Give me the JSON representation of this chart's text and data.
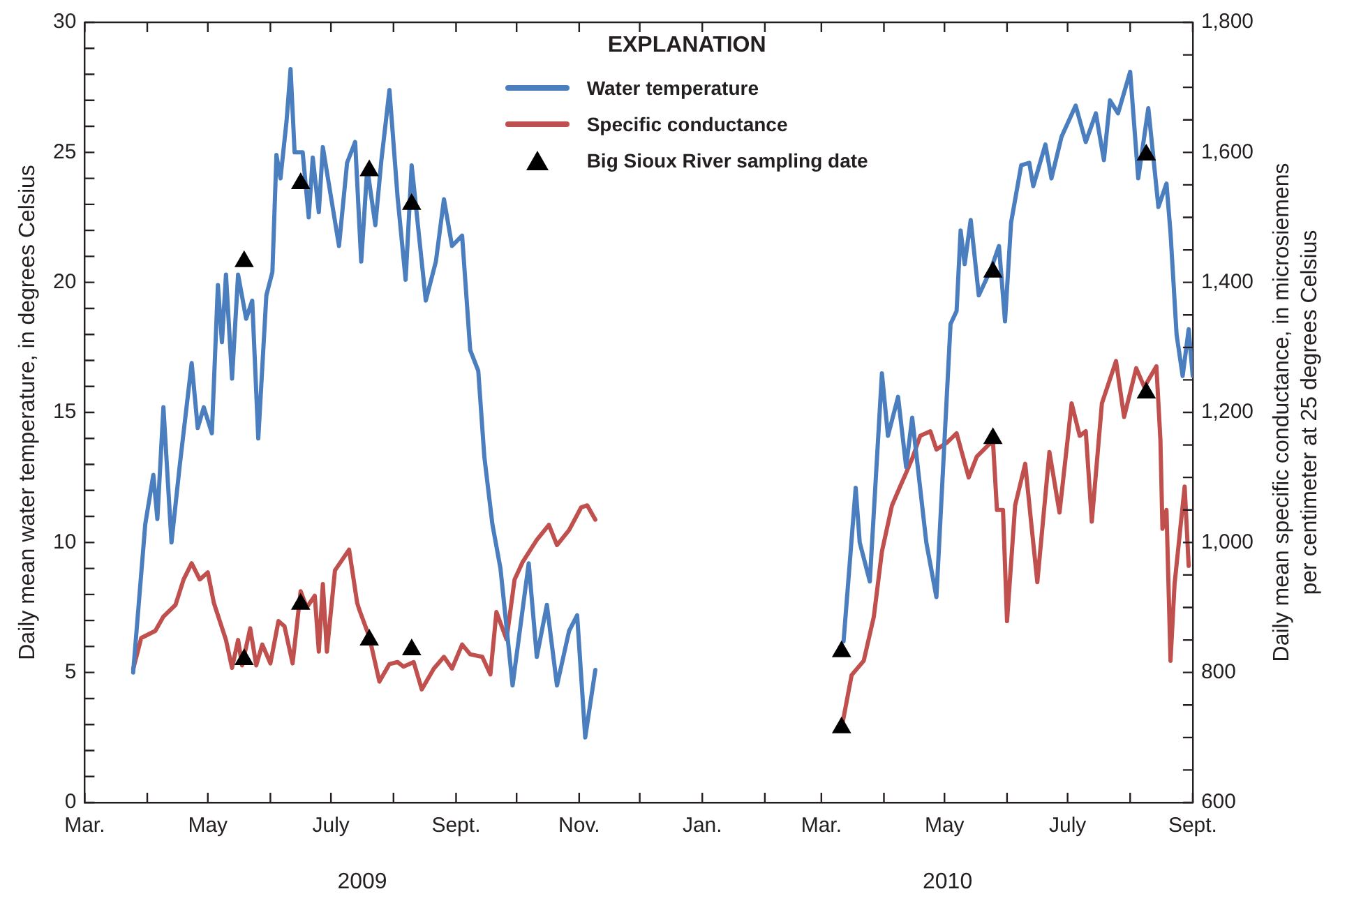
{
  "chart_data": {
    "type": "line",
    "ylabel": "Daily mean water temperature, in degrees Celsius",
    "y2label": "Daily mean specific conductance, in microsiemens\nper centimeter at 25 degrees Celsius",
    "legend_title": "EXPLANATION",
    "legend": "top",
    "grid": false,
    "annotations": [
      "2009",
      "2010"
    ],
    "xlim": [
      "2009-03-01",
      "2010-09-01"
    ],
    "xticks": [
      {
        "value": "2009-03-01",
        "label": "Mar."
      },
      {
        "value": "2009-04-01",
        "label": null
      },
      {
        "value": "2009-05-01",
        "label": "May"
      },
      {
        "value": "2009-06-01",
        "label": null
      },
      {
        "value": "2009-07-01",
        "label": "July"
      },
      {
        "value": "2009-08-01",
        "label": null
      },
      {
        "value": "2009-09-01",
        "label": "Sept."
      },
      {
        "value": "2009-10-01",
        "label": null
      },
      {
        "value": "2009-11-01",
        "label": "Nov."
      },
      {
        "value": "2009-12-01",
        "label": null
      },
      {
        "value": "2010-01-01",
        "label": "Jan."
      },
      {
        "value": "2010-02-01",
        "label": null
      },
      {
        "value": "2010-03-01",
        "label": "Mar."
      },
      {
        "value": "2010-04-01",
        "label": null
      },
      {
        "value": "2010-05-01",
        "label": "May"
      },
      {
        "value": "2010-06-01",
        "label": null
      },
      {
        "value": "2010-07-01",
        "label": "July"
      },
      {
        "value": "2010-08-01",
        "label": null
      },
      {
        "value": "2010-09-01",
        "label": "Sept."
      }
    ],
    "ylim": [
      0,
      30
    ],
    "yticks": [
      0,
      {
        "value": 1,
        "label": null
      },
      {
        "value": 2,
        "label": null
      },
      {
        "value": 3,
        "label": null
      },
      {
        "value": 4,
        "label": null
      },
      5,
      {
        "value": 6,
        "label": null
      },
      {
        "value": 7,
        "label": null
      },
      {
        "value": 8,
        "label": null
      },
      {
        "value": 9,
        "label": null
      },
      10,
      {
        "value": 11,
        "label": null
      },
      {
        "value": 12,
        "label": null
      },
      {
        "value": 13,
        "label": null
      },
      {
        "value": 14,
        "label": null
      },
      15,
      {
        "value": 16,
        "label": null
      },
      {
        "value": 17,
        "label": null
      },
      {
        "value": 18,
        "label": null
      },
      {
        "value": 19,
        "label": null
      },
      20,
      {
        "value": 21,
        "label": null
      },
      {
        "value": 22,
        "label": null
      },
      {
        "value": 23,
        "label": null
      },
      {
        "value": 24,
        "label": null
      },
      25,
      {
        "value": 26,
        "label": null
      },
      {
        "value": 27,
        "label": null
      },
      {
        "value": 28,
        "label": null
      },
      {
        "value": 29,
        "label": null
      },
      30
    ],
    "y2lim": [
      600,
      1800
    ],
    "y2ticks": [
      600,
      {
        "value": 650,
        "label": null
      },
      {
        "value": 700,
        "label": null
      },
      {
        "value": 750,
        "label": null
      },
      800,
      {
        "value": 850,
        "label": null
      },
      {
        "value": 900,
        "label": null
      },
      {
        "value": 950,
        "label": null
      },
      {
        "value": 1000,
        "label": "1,000"
      },
      {
        "value": 1050,
        "label": null
      },
      {
        "value": 1100,
        "label": null
      },
      {
        "value": 1150,
        "label": null
      },
      {
        "value": 1200,
        "label": "1,200"
      },
      {
        "value": 1250,
        "label": null
      },
      {
        "value": 1300,
        "label": null
      },
      {
        "value": 1350,
        "label": null
      },
      {
        "value": 1400,
        "label": "1,400"
      },
      {
        "value": 1450,
        "label": null
      },
      {
        "value": 1500,
        "label": null
      },
      {
        "value": 1550,
        "label": null
      },
      {
        "value": 1600,
        "label": "1,600"
      },
      {
        "value": 1650,
        "label": null
      },
      {
        "value": 1700,
        "label": null
      },
      {
        "value": 1750,
        "label": null
      },
      {
        "value": 1800,
        "label": "1,800"
      }
    ],
    "series": [
      {
        "name": "Water temperature",
        "color": "#4a7ebf",
        "x": [
          "2009-03-25",
          "2009-03-31",
          "2009-04-04",
          "2009-04-06",
          "2009-04-09",
          "2009-04-13",
          "2009-04-17",
          "2009-04-23",
          "2009-04-26",
          "2009-04-29",
          "2009-05-03",
          "2009-05-06",
          "2009-05-08",
          "2009-05-10",
          "2009-05-13",
          "2009-05-16",
          "2009-05-20",
          "2009-05-23",
          "2009-05-26",
          "2009-05-30",
          "2009-06-02",
          "2009-06-04",
          "2009-06-06",
          "2009-06-09",
          "2009-06-11",
          "2009-06-13",
          "2009-06-17",
          "2009-06-20",
          "2009-06-22",
          "2009-06-25",
          "2009-06-27",
          "2009-07-05",
          "2009-07-09",
          "2009-07-13",
          "2009-07-16",
          "2009-07-19",
          "2009-07-23",
          "2009-07-26",
          "2009-07-30",
          "2009-08-03",
          "2009-08-07",
          "2009-08-10",
          "2009-08-17",
          "2009-08-22",
          "2009-08-26",
          "2009-08-30",
          "2009-09-04",
          "2009-09-08",
          "2009-09-12",
          "2009-09-15",
          "2009-09-19",
          "2009-09-23",
          "2009-09-29",
          "2009-10-07",
          "2009-10-11",
          "2009-10-16",
          "2009-10-21",
          "2009-10-27",
          "2009-10-31",
          "2009-11-04",
          "2009-11-09",
          "2010-01-01",
          "2010-03-12",
          "2010-03-18",
          "2010-03-20",
          "2010-03-25",
          "2010-03-31",
          "2010-04-03",
          "2010-04-08",
          "2010-04-12",
          "2010-04-15",
          "2010-04-22",
          "2010-04-27",
          "2010-05-04",
          "2010-05-07",
          "2010-05-09",
          "2010-05-11",
          "2010-05-14",
          "2010-05-18",
          "2010-05-24",
          "2010-05-28",
          "2010-05-31",
          "2010-06-03",
          "2010-06-08",
          "2010-06-12",
          "2010-06-14",
          "2010-06-20",
          "2010-06-23",
          "2010-06-28",
          "2010-07-05",
          "2010-07-10",
          "2010-07-15",
          "2010-07-19",
          "2010-07-22",
          "2010-07-26",
          "2010-08-01",
          "2010-08-05",
          "2010-08-10",
          "2010-08-15",
          "2010-08-19",
          "2010-08-21",
          "2010-08-24",
          "2010-08-27",
          "2010-08-30",
          "2010-09-01"
        ],
        "values": [
          5.0,
          10.7,
          12.6,
          10.9,
          15.2,
          10.0,
          12.9,
          16.9,
          14.4,
          15.2,
          14.2,
          19.9,
          17.7,
          20.3,
          16.3,
          20.3,
          18.6,
          19.3,
          14.0,
          19.5,
          20.4,
          24.9,
          24.0,
          26.2,
          28.2,
          25.0,
          25.0,
          22.5,
          24.8,
          22.7,
          25.2,
          21.4,
          24.6,
          25.4,
          20.8,
          24.4,
          22.2,
          24.7,
          27.4,
          23.3,
          20.1,
          24.5,
          19.3,
          20.8,
          23.2,
          21.4,
          21.8,
          17.4,
          16.6,
          13.3,
          10.7,
          9.0,
          4.5,
          9.2,
          5.6,
          7.6,
          4.5,
          6.6,
          7.2,
          2.5,
          5.1,
          null,
          6.2,
          12.1,
          10.0,
          8.5,
          16.5,
          14.1,
          15.6,
          12.9,
          14.8,
          10.0,
          7.9,
          18.4,
          18.9,
          22.0,
          20.7,
          22.4,
          19.5,
          20.5,
          21.4,
          18.5,
          22.3,
          24.5,
          24.6,
          23.7,
          25.3,
          24.0,
          25.6,
          26.8,
          25.4,
          26.5,
          24.7,
          27.0,
          26.5,
          28.1,
          24.0,
          26.7,
          22.9,
          23.8,
          21.9,
          18.0,
          16.4,
          18.2,
          16.4
        ]
      },
      {
        "name": "Specific conductance",
        "axis": "y2",
        "color": "#c0504d",
        "x": [
          "2009-03-25",
          "2009-03-29",
          "2009-04-05",
          "2009-04-09",
          "2009-04-15",
          "2009-04-19",
          "2009-04-23",
          "2009-04-27",
          "2009-05-01",
          "2009-05-04",
          "2009-05-10",
          "2009-05-13",
          "2009-05-16",
          "2009-05-18",
          "2009-05-22",
          "2009-05-25",
          "2009-05-28",
          "2009-06-01",
          "2009-06-05",
          "2009-06-08",
          "2009-06-12",
          "2009-06-16",
          "2009-06-19",
          "2009-06-23",
          "2009-06-25",
          "2009-06-27",
          "2009-06-29",
          "2009-07-03",
          "2009-07-10",
          "2009-07-14",
          "2009-07-15",
          "2009-07-20",
          "2009-07-25",
          "2009-07-30",
          "2009-08-03",
          "2009-08-06",
          "2009-08-11",
          "2009-08-15",
          "2009-08-21",
          "2009-08-26",
          "2009-08-30",
          "2009-09-04",
          "2009-09-08",
          "2009-09-14",
          "2009-09-18",
          "2009-09-21",
          "2009-09-26",
          "2009-09-30",
          "2009-10-04",
          "2009-10-11",
          "2009-10-17",
          "2009-10-21",
          "2009-10-27",
          "2009-11-02",
          "2009-11-05",
          "2009-11-09",
          "2010-01-01",
          "2010-03-11",
          "2010-03-16",
          "2010-03-22",
          "2010-03-27",
          "2010-03-31",
          "2010-04-05",
          "2010-04-09",
          "2010-04-12",
          "2010-04-15",
          "2010-04-19",
          "2010-04-24",
          "2010-04-27",
          "2010-05-02",
          "2010-05-07",
          "2010-05-13",
          "2010-05-17",
          "2010-05-25",
          "2010-05-27",
          "2010-05-30",
          "2010-06-01",
          "2010-06-05",
          "2010-06-10",
          "2010-06-13",
          "2010-06-16",
          "2010-06-22",
          "2010-06-27",
          "2010-07-03",
          "2010-07-07",
          "2010-07-10",
          "2010-07-13",
          "2010-07-18",
          "2010-07-25",
          "2010-07-29",
          "2010-08-04",
          "2010-08-08",
          "2010-08-14",
          "2010-08-16",
          "2010-08-17",
          "2010-08-19",
          "2010-08-21",
          "2010-08-23",
          "2010-08-28",
          "2010-08-30"
        ],
        "values": [
          805,
          853,
          864,
          886,
          904,
          943,
          968,
          943,
          954,
          907,
          850,
          807,
          850,
          811,
          868,
          811,
          843,
          814,
          879,
          871,
          814,
          925,
          900,
          918,
          832,
          936,
          832,
          957,
          989,
          907,
          897,
          855,
          786,
          813,
          816,
          809,
          816,
          774,
          806,
          824,
          806,
          843,
          828,
          824,
          797,
          893,
          851,
          943,
          970,
          1004,
          1027,
          996,
          1019,
          1054,
          1057,
          1035,
          null,
          714,
          796,
          818,
          886,
          986,
          1057,
          1086,
          1107,
          1129,
          1164,
          1171,
          1143,
          1153,
          1168,
          1100,
          1132,
          1157,
          1050,
          1050,
          879,
          1057,
          1121,
          1029,
          939,
          1139,
          1046,
          1214,
          1164,
          1171,
          1032,
          1214,
          1279,
          1193,
          1268,
          1239,
          1271,
          1157,
          1021,
          1050,
          818,
          936,
          1086,
          964
        ]
      },
      {
        "name": "Big Sioux River sampling date",
        "type": "scatter",
        "marker": "triangle",
        "color": "#000000",
        "x": [
          "2009-05-19",
          "2009-06-16",
          "2009-07-20",
          "2009-08-10",
          "2010-03-11",
          "2010-05-25",
          "2010-08-09"
        ],
        "values": [
          20.8,
          23.8,
          24.3,
          23.0,
          5.8,
          20.4,
          24.9
        ]
      },
      {
        "type": "scatter",
        "marker": "triangle",
        "axis": "y2",
        "color": "#000000",
        "x": [
          "2009-05-19",
          "2009-06-16",
          "2009-07-20",
          "2009-08-10",
          "2010-03-11",
          "2010-05-25",
          "2010-08-09"
        ],
        "values": [
          820,
          905,
          850,
          835,
          715,
          1160,
          1230
        ]
      }
    ]
  }
}
